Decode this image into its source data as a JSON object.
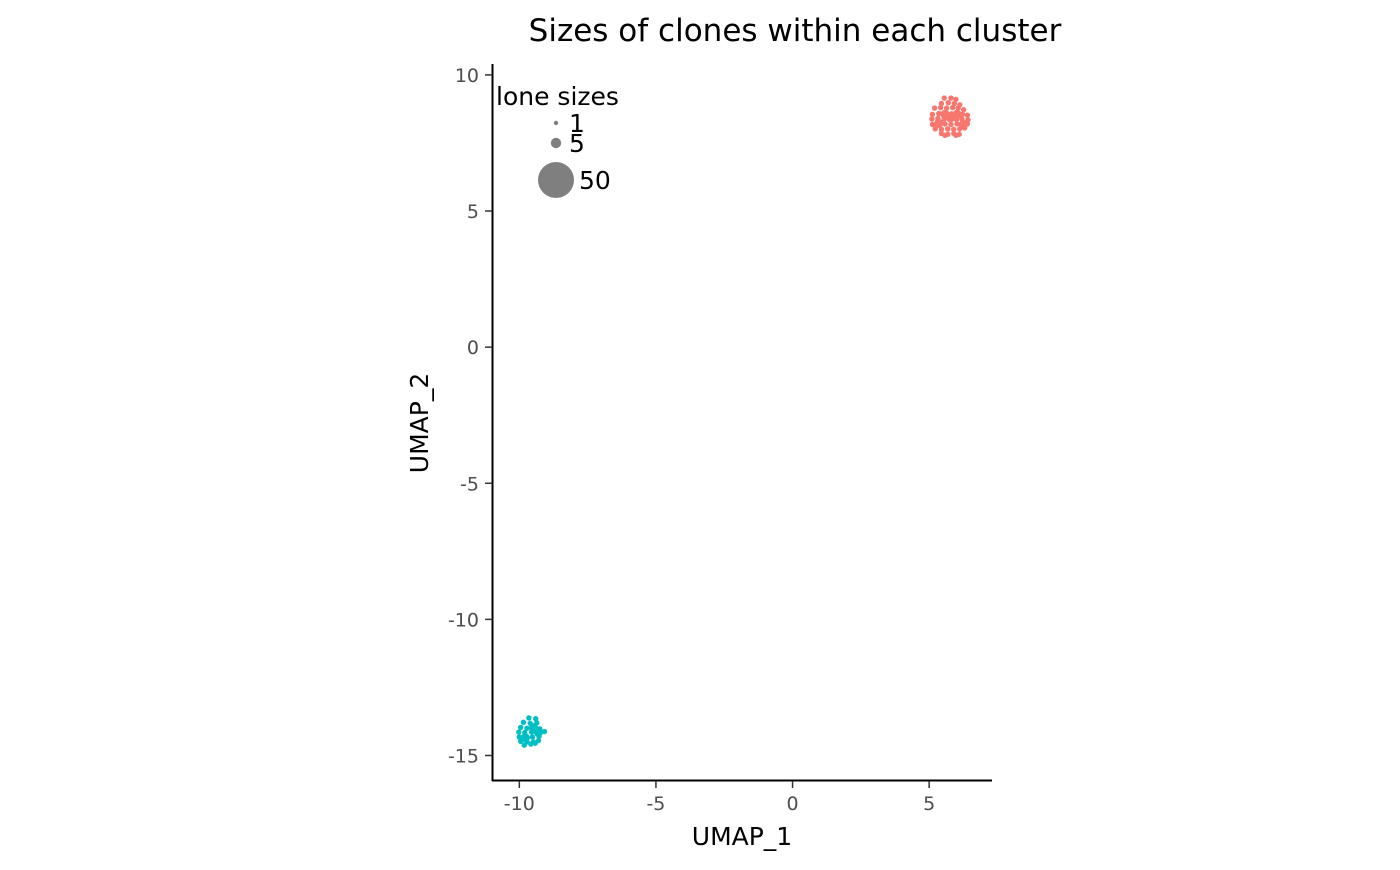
{
  "chart_data": {
    "type": "scatter",
    "title": "Sizes of clones within each cluster",
    "xlabel": "UMAP_1",
    "ylabel": "UMAP_2",
    "xlim": [
      -11,
      7.3
    ],
    "ylim": [
      -15.9,
      10.4
    ],
    "x_ticks": [
      -10,
      -5,
      0,
      5
    ],
    "y_ticks": [
      10,
      5,
      0,
      -5,
      -10,
      -15
    ],
    "grid": false,
    "legend": {
      "title": "lone sizes",
      "placement": "top-left",
      "entries": [
        {
          "label": "1",
          "size": 1
        },
        {
          "label": "5",
          "size": 5
        },
        {
          "label": "50",
          "size": 50
        }
      ]
    },
    "colors": {
      "cluster_a": "#F8766D",
      "cluster_b": "#00BFC4",
      "legend_point": "#7F7F7F"
    },
    "series": [
      {
        "color": "#F8766D",
        "points": [
          [
            5.55,
            9.15
          ],
          [
            5.8,
            9.15
          ],
          [
            5.98,
            9.1
          ],
          [
            5.45,
            8.95
          ],
          [
            5.7,
            8.98
          ],
          [
            5.92,
            8.95
          ],
          [
            6.12,
            8.9
          ],
          [
            5.2,
            8.78
          ],
          [
            5.42,
            8.8
          ],
          [
            5.64,
            8.78
          ],
          [
            5.86,
            8.8
          ],
          [
            6.06,
            8.78
          ],
          [
            6.26,
            8.72
          ],
          [
            5.12,
            8.55
          ],
          [
            5.35,
            8.58
          ],
          [
            5.58,
            8.55
          ],
          [
            5.82,
            8.57
          ],
          [
            6.02,
            8.55
          ],
          [
            6.22,
            8.55
          ],
          [
            6.4,
            8.52
          ],
          [
            5.1,
            8.38
          ],
          [
            5.32,
            8.4
          ],
          [
            5.55,
            8.38
          ],
          [
            5.78,
            8.42
          ],
          [
            6.0,
            8.36
          ],
          [
            6.2,
            8.38
          ],
          [
            6.42,
            8.35
          ],
          [
            5.12,
            8.18
          ],
          [
            5.35,
            8.22
          ],
          [
            5.58,
            8.2
          ],
          [
            5.8,
            8.18
          ],
          [
            6.02,
            8.2
          ],
          [
            6.25,
            8.18
          ],
          [
            6.4,
            8.2
          ],
          [
            5.22,
            8.02
          ],
          [
            5.45,
            8.0
          ],
          [
            5.68,
            8.02
          ],
          [
            5.9,
            8.0
          ],
          [
            6.12,
            8.02
          ],
          [
            6.3,
            8.05
          ],
          [
            5.45,
            7.85
          ],
          [
            5.68,
            7.82
          ],
          [
            5.9,
            7.85
          ],
          [
            6.1,
            7.82
          ],
          [
            5.58,
            7.78
          ],
          [
            5.98,
            7.78
          ]
        ],
        "sizes": [
          1,
          1,
          1,
          1,
          1,
          1,
          1,
          1,
          1,
          1,
          1,
          1,
          1,
          1,
          1,
          5,
          1,
          5,
          1,
          1,
          1,
          1,
          1,
          5,
          1,
          1,
          1,
          1,
          5,
          1,
          1,
          1,
          5,
          1,
          1,
          1,
          1,
          1,
          1,
          1,
          1,
          1,
          1,
          1,
          1,
          1
        ]
      },
      {
        "color": "#00BFC4",
        "points": [
          [
            -9.65,
            -13.62
          ],
          [
            -9.4,
            -13.65
          ],
          [
            -9.85,
            -13.78
          ],
          [
            -9.6,
            -13.82
          ],
          [
            -9.36,
            -13.8
          ],
          [
            -9.95,
            -13.97
          ],
          [
            -9.72,
            -14.0
          ],
          [
            -9.48,
            -13.98
          ],
          [
            -9.25,
            -14.02
          ],
          [
            -10.02,
            -14.14
          ],
          [
            -9.8,
            -14.16
          ],
          [
            -9.55,
            -14.14
          ],
          [
            -9.3,
            -14.15
          ],
          [
            -9.08,
            -14.12
          ],
          [
            -10.0,
            -14.32
          ],
          [
            -9.78,
            -14.35
          ],
          [
            -9.52,
            -14.32
          ],
          [
            -9.28,
            -14.3
          ],
          [
            -9.95,
            -14.48
          ],
          [
            -9.72,
            -14.5
          ],
          [
            -9.48,
            -14.5
          ],
          [
            -9.3,
            -14.45
          ],
          [
            -9.82,
            -14.62
          ],
          [
            -9.58,
            -14.58
          ],
          [
            -9.42,
            -14.55
          ]
        ],
        "sizes": [
          1,
          1,
          1,
          1,
          1,
          1,
          1,
          5,
          1,
          1,
          1,
          1,
          5,
          1,
          1,
          5,
          1,
          1,
          1,
          1,
          1,
          1,
          1,
          1,
          1
        ]
      }
    ]
  }
}
